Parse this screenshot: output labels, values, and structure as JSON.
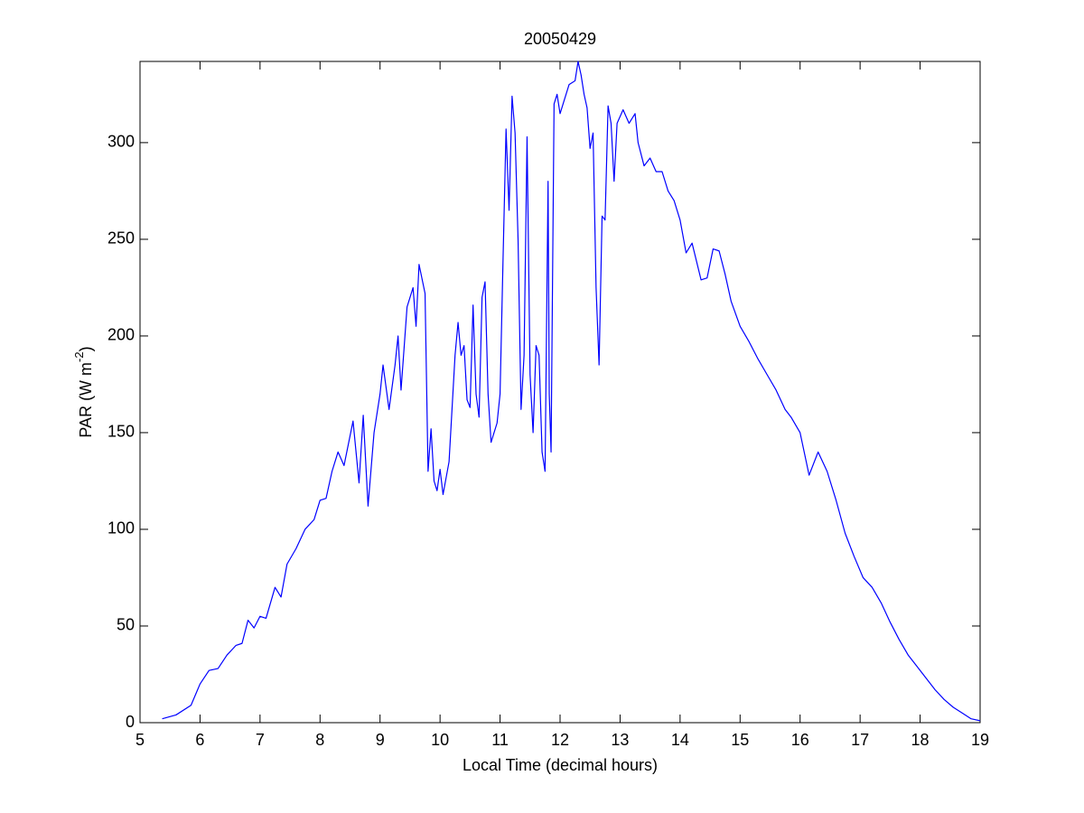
{
  "chart_data": {
    "type": "line",
    "title": "20050429",
    "xlabel": "Local Time (decimal hours)",
    "ylabel": "PAR (W m",
    "ylabel_sup": "-2",
    "ylabel_end": ")",
    "color": "#0000ff",
    "xlim": [
      5,
      19
    ],
    "ylim": [
      0,
      342
    ],
    "xticks": [
      5,
      6,
      7,
      8,
      9,
      10,
      11,
      12,
      13,
      14,
      15,
      16,
      17,
      18,
      19
    ],
    "yticks": [
      0,
      50,
      100,
      150,
      200,
      250,
      300
    ],
    "x": [
      5.37,
      5.6,
      5.85,
      6.0,
      6.15,
      6.3,
      6.45,
      6.6,
      6.7,
      6.8,
      6.9,
      7.0,
      7.1,
      7.25,
      7.35,
      7.45,
      7.6,
      7.75,
      7.9,
      8.0,
      8.1,
      8.2,
      8.3,
      8.4,
      8.55,
      8.65,
      8.72,
      8.8,
      8.9,
      9.0,
      9.05,
      9.15,
      9.25,
      9.3,
      9.35,
      9.45,
      9.55,
      9.6,
      9.65,
      9.75,
      9.8,
      9.85,
      9.9,
      9.95,
      10.0,
      10.05,
      10.15,
      10.25,
      10.3,
      10.35,
      10.4,
      10.45,
      10.5,
      10.55,
      10.6,
      10.65,
      10.7,
      10.75,
      10.8,
      10.85,
      10.95,
      11.0,
      11.05,
      11.1,
      11.15,
      11.2,
      11.25,
      11.3,
      11.35,
      11.4,
      11.45,
      11.5,
      11.55,
      11.6,
      11.65,
      11.7,
      11.75,
      11.8,
      11.82,
      11.85,
      11.9,
      11.95,
      12.0,
      12.05,
      12.15,
      12.25,
      12.3,
      12.35,
      12.4,
      12.45,
      12.5,
      12.55,
      12.6,
      12.65,
      12.7,
      12.75,
      12.8,
      12.85,
      12.9,
      12.95,
      13.05,
      13.15,
      13.25,
      13.3,
      13.4,
      13.5,
      13.6,
      13.7,
      13.8,
      13.9,
      14.0,
      14.1,
      14.2,
      14.35,
      14.45,
      14.55,
      14.65,
      14.75,
      14.85,
      15.0,
      15.15,
      15.3,
      15.45,
      15.6,
      15.75,
      15.85,
      16.0,
      16.15,
      16.3,
      16.45,
      16.6,
      16.75,
      16.9,
      17.05,
      17.2,
      17.35,
      17.5,
      17.65,
      17.8,
      17.95,
      18.1,
      18.25,
      18.4,
      18.55,
      18.7,
      18.85,
      19.0
    ],
    "values": [
      2,
      4,
      9,
      20,
      27,
      28,
      35,
      40,
      41,
      53,
      49,
      55,
      54,
      70,
      65,
      82,
      90,
      100,
      105,
      115,
      116,
      130,
      140,
      133,
      156,
      124,
      159,
      112,
      150,
      170,
      185,
      162,
      185,
      200,
      172,
      215,
      225,
      205,
      237,
      222,
      130,
      152,
      125,
      120,
      131,
      118,
      135,
      190,
      207,
      190,
      195,
      167,
      163,
      216,
      170,
      158,
      220,
      228,
      170,
      145,
      155,
      170,
      240,
      307,
      265,
      324,
      305,
      250,
      162,
      190,
      303,
      180,
      150,
      195,
      190,
      140,
      130,
      280,
      170,
      140,
      320,
      325,
      315,
      320,
      330,
      332,
      342,
      335,
      325,
      318,
      297,
      305,
      225,
      185,
      262,
      260,
      319,
      310,
      280,
      310,
      317,
      310,
      315,
      300,
      288,
      292,
      285,
      285,
      275,
      270,
      260,
      243,
      248,
      229,
      230,
      245,
      244,
      232,
      218,
      205,
      197,
      188,
      180,
      172,
      162,
      158,
      150,
      128,
      140,
      130,
      115,
      98,
      86,
      75,
      70,
      62,
      52,
      43,
      35,
      29,
      23,
      17,
      12,
      8,
      5,
      2,
      1
    ]
  }
}
